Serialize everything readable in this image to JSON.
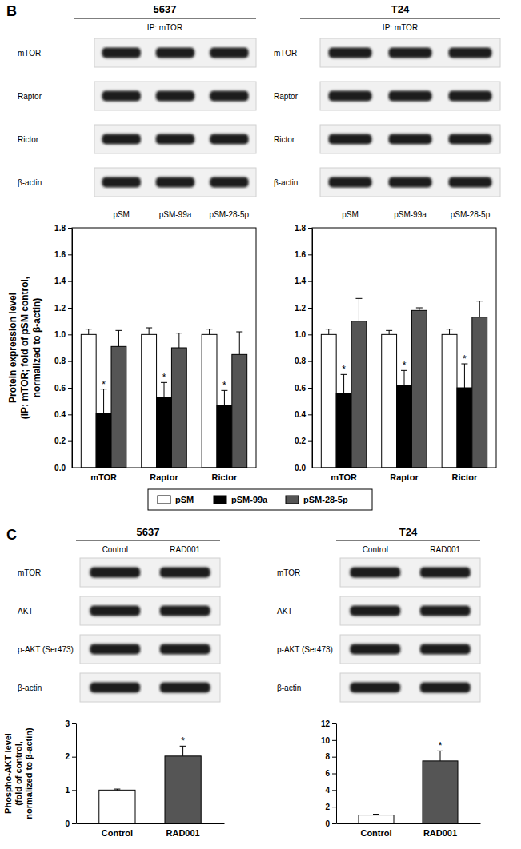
{
  "panels": [
    {
      "label": "B",
      "blots": [
        {
          "title": "5637",
          "subtitle": "IP: mTOR",
          "rows": [
            "mTOR",
            "Raptor",
            "Rictor",
            "β-actin"
          ],
          "lanes": [
            "pSM",
            "pSM-99a",
            "pSM-28-5p"
          ]
        },
        {
          "title": "T24",
          "subtitle": "IP: mTOR",
          "rows": [
            "mTOR",
            "Raptor",
            "Rictor",
            "β-actin"
          ],
          "lanes": [
            "pSM",
            "pSM-99a",
            "pSM-28-5p"
          ]
        }
      ]
    },
    {
      "label": "C",
      "blots": [
        {
          "title": "5637",
          "rows": [
            "mTOR",
            "AKT",
            "p-AKT (Ser473)",
            "β-actin"
          ],
          "lanes": [
            "Control",
            "RAD001"
          ]
        },
        {
          "title": "T24",
          "rows": [
            "mTOR",
            "AKT",
            "p-AKT (Ser473)",
            "β-actin"
          ],
          "lanes": [
            "Control",
            "RAD001"
          ]
        }
      ]
    }
  ],
  "chart_data": [
    {
      "type": "bar",
      "y_label": [
        "Protein expression level",
        "(IP: mTOR; fold of pSM control,",
        "normalized to β-actin)"
      ],
      "categories": [
        "mTOR",
        "Raptor",
        "Rictor"
      ],
      "series": [
        {
          "name": "pSM",
          "color": "#ffffff",
          "values": [
            1.0,
            1.0,
            1.0
          ],
          "errors": [
            0.04,
            0.05,
            0.04
          ]
        },
        {
          "name": "pSM-99a",
          "color": "#000000",
          "values": [
            0.41,
            0.53,
            0.47
          ],
          "errors": [
            0.18,
            0.11,
            0.11
          ],
          "annotations": [
            "*",
            "*",
            "*"
          ]
        },
        {
          "name": "pSM-28-5p",
          "color": "#555555",
          "values": [
            0.91,
            0.9,
            0.85
          ],
          "errors": [
            0.12,
            0.11,
            0.17
          ]
        }
      ],
      "ylim": [
        0,
        1.8
      ],
      "yticks": [
        {
          "value": 0,
          "label": "0.0"
        },
        0.2,
        0.4,
        0.6,
        0.8,
        {
          "value": 1,
          "label": "1.0"
        },
        1.2,
        1.4,
        1.6,
        1.8
      ],
      "legend": "bottom"
    },
    {
      "type": "bar",
      "categories": [
        "mTOR",
        "Raptor",
        "Rictor"
      ],
      "series": [
        {
          "color": "#ffffff",
          "values": [
            1.0,
            1.0,
            1.0
          ],
          "errors": [
            0.04,
            0.03,
            0.04
          ]
        },
        {
          "color": "#000000",
          "values": [
            0.56,
            0.62,
            0.6
          ],
          "errors": [
            0.14,
            0.11,
            0.18
          ],
          "annotations": [
            "*",
            "*",
            "*"
          ]
        },
        {
          "color": "#555555",
          "values": [
            1.1,
            1.18,
            1.13
          ],
          "errors": [
            0.17,
            0.02,
            0.12
          ]
        }
      ],
      "ylim": [
        0,
        1.8
      ],
      "yticks": [
        {
          "value": 0,
          "label": "0.0"
        },
        0.2,
        0.4,
        0.6,
        0.8,
        {
          "value": 1,
          "label": "1.0"
        },
        1.2,
        1.4,
        1.6,
        1.8
      ]
    },
    {
      "type": "bar",
      "y_label": [
        "Phospho-AKT level",
        "(fold of control,",
        "normalized to β-actin)"
      ],
      "categories": [
        "Control",
        "RAD001"
      ],
      "values": [
        1.0,
        2.02
      ],
      "errors": [
        0.03,
        0.3
      ],
      "colors": [
        "#ffffff",
        "#555555"
      ],
      "annotations": [
        null,
        "*"
      ],
      "ylim": [
        0,
        3
      ],
      "yticks": [
        0,
        1,
        2,
        3
      ]
    },
    {
      "type": "bar",
      "categories": [
        "Control",
        "RAD001"
      ],
      "values": [
        1.0,
        7.5
      ],
      "errors": [
        0.1,
        1.2
      ],
      "colors": [
        "#ffffff",
        "#555555"
      ],
      "annotations": [
        null,
        "*"
      ],
      "ylim": [
        0,
        12
      ],
      "yticks": [
        0,
        2,
        4,
        6,
        8,
        10,
        12
      ]
    }
  ]
}
